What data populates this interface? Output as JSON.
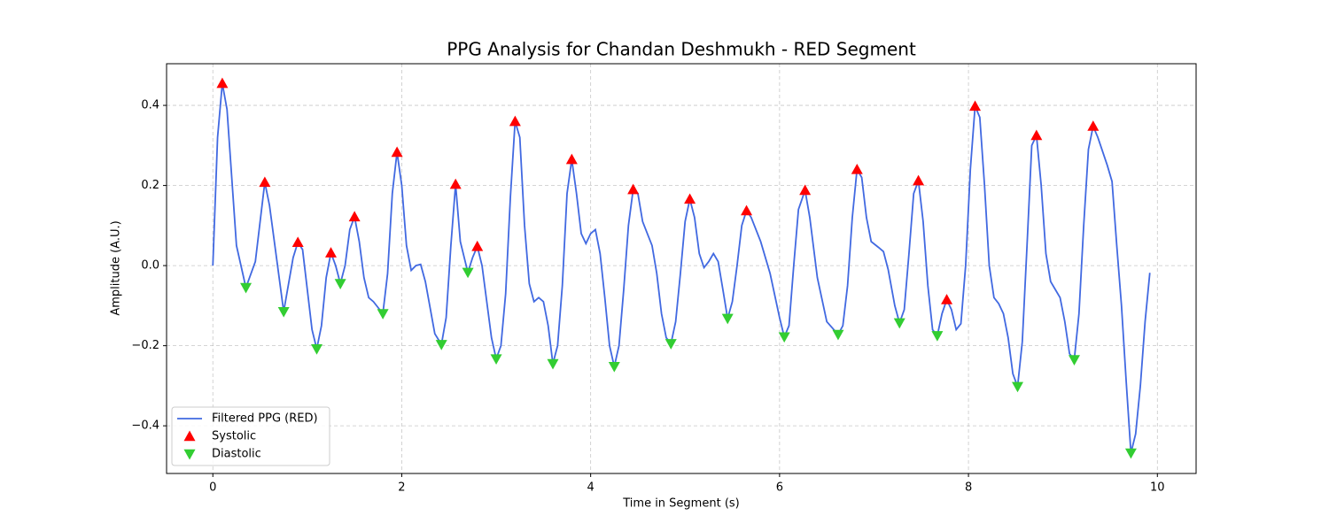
{
  "chart_data": {
    "type": "line",
    "title": "PPG Analysis for Chandan Deshmukh - RED Segment",
    "x_label": "Time in Segment (s)",
    "y_label": "Amplitude (A.U.)",
    "xlim": [
      -0.49,
      10.41
    ],
    "ylim": [
      -0.519,
      0.504
    ],
    "xticks": [
      0,
      2,
      4,
      6,
      8,
      10
    ],
    "yticks": [
      {
        "value": -0.4,
        "label": "−0.4"
      },
      {
        "value": -0.2,
        "label": "−0.2"
      },
      {
        "value": 0,
        "label": "0.0"
      },
      0.2,
      0.4
    ],
    "grid": true,
    "legend": "lower left",
    "series": [
      {
        "name": "Filtered PPG (RED)",
        "color": "#4169e1",
        "style": "line",
        "x": [
          0,
          0.05,
          0.1,
          0.15,
          0.25,
          0.35,
          0.45,
          0.55,
          0.6,
          0.75,
          0.85,
          0.9,
          0.95,
          1.05,
          1.1,
          1.15,
          1.2,
          1.25,
          1.3,
          1.35,
          1.4,
          1.45,
          1.5,
          1.55,
          1.6,
          1.65,
          1.7,
          1.8,
          1.85,
          1.9,
          1.95,
          2.0,
          2.05,
          2.1,
          2.15,
          2.2,
          2.25,
          2.35,
          2.42,
          2.47,
          2.52,
          2.57,
          2.62,
          2.7,
          2.75,
          2.8,
          2.85,
          2.95,
          3.0,
          3.05,
          3.1,
          3.15,
          3.2,
          3.25,
          3.3,
          3.35,
          3.4,
          3.45,
          3.5,
          3.55,
          3.6,
          3.65,
          3.7,
          3.75,
          3.8,
          3.85,
          3.9,
          3.95,
          4.0,
          4.05,
          4.1,
          4.15,
          4.2,
          4.25,
          4.3,
          4.35,
          4.4,
          4.45,
          4.5,
          4.55,
          4.6,
          4.65,
          4.7,
          4.75,
          4.8,
          4.85,
          4.9,
          4.95,
          5.0,
          5.05,
          5.1,
          5.15,
          5.2,
          5.25,
          5.3,
          5.35,
          5.4,
          5.45,
          5.5,
          5.55,
          5.6,
          5.65,
          5.7,
          5.8,
          5.9,
          6.0,
          6.05,
          6.1,
          6.15,
          6.2,
          6.27,
          6.32,
          6.4,
          6.5,
          6.62,
          6.67,
          6.72,
          6.77,
          6.82,
          6.87,
          6.92,
          6.97,
          7.05,
          7.1,
          7.15,
          7.22,
          7.27,
          7.32,
          7.37,
          7.42,
          7.47,
          7.52,
          7.57,
          7.62,
          7.67,
          7.72,
          7.77,
          7.82,
          7.87,
          7.92,
          7.97,
          8.02,
          8.07,
          8.12,
          8.17,
          8.22,
          8.27,
          8.32,
          8.37,
          8.42,
          8.47,
          8.52,
          8.57,
          8.62,
          8.67,
          8.72,
          8.77,
          8.82,
          8.87,
          8.92,
          8.97,
          9.02,
          9.07,
          9.12,
          9.17,
          9.22,
          9.27,
          9.32,
          9.37,
          9.47,
          9.52,
          9.57,
          9.62,
          9.67,
          9.72,
          9.77,
          9.82,
          9.87,
          9.92
        ],
        "values": [
          0,
          0.32,
          0.455,
          0.39,
          0.05,
          -0.055,
          0.01,
          0.208,
          0.15,
          -0.115,
          0.02,
          0.058,
          0.04,
          -0.16,
          -0.208,
          -0.15,
          -0.03,
          0.032,
          0,
          -0.045,
          0,
          0.09,
          0.122,
          0.06,
          -0.03,
          -0.08,
          -0.09,
          -0.12,
          -0.02,
          0.18,
          0.283,
          0.2,
          0.05,
          -0.012,
          0,
          0.003,
          -0.04,
          -0.17,
          -0.197,
          -0.13,
          0.05,
          0.203,
          0.06,
          -0.017,
          0.02,
          0.048,
          0,
          -0.18,
          -0.233,
          -0.2,
          -0.07,
          0.17,
          0.36,
          0.32,
          0.1,
          -0.045,
          -0.09,
          -0.08,
          -0.09,
          -0.15,
          -0.245,
          -0.2,
          -0.05,
          0.18,
          0.265,
          0.18,
          0.08,
          0.055,
          0.08,
          0.09,
          0.03,
          -0.08,
          -0.2,
          -0.252,
          -0.2,
          -0.06,
          0.1,
          0.19,
          0.18,
          0.11,
          0.08,
          0.05,
          -0.02,
          -0.12,
          -0.18,
          -0.195,
          -0.14,
          -0.02,
          0.11,
          0.166,
          0.12,
          0.03,
          -0.005,
          0.01,
          0.03,
          0.01,
          -0.06,
          -0.132,
          -0.09,
          0,
          0.1,
          0.137,
          0.12,
          0.06,
          -0.02,
          -0.13,
          -0.178,
          -0.15,
          0,
          0.14,
          0.188,
          0.12,
          -0.03,
          -0.14,
          -0.172,
          -0.15,
          -0.05,
          0.12,
          0.24,
          0.22,
          0.12,
          0.06,
          0.045,
          0.035,
          -0.01,
          -0.1,
          -0.143,
          -0.11,
          0.03,
          0.18,
          0.212,
          0.11,
          -0.05,
          -0.16,
          -0.175,
          -0.12,
          -0.085,
          -0.11,
          -0.16,
          -0.145,
          0,
          0.24,
          0.398,
          0.37,
          0.2,
          0,
          -0.08,
          -0.095,
          -0.12,
          -0.18,
          -0.27,
          -0.302,
          -0.19,
          0.05,
          0.3,
          0.325,
          0.2,
          0.03,
          -0.04,
          -0.06,
          -0.08,
          -0.14,
          -0.22,
          -0.235,
          -0.12,
          0.1,
          0.29,
          0.348,
          0.32,
          0.25,
          0.21,
          0.05,
          -0.1,
          -0.29,
          -0.468,
          -0.42,
          -0.3,
          -0.14,
          -0.018
        ]
      },
      {
        "name": "Systolic",
        "color": "#ff0000",
        "style": "triangle-up",
        "x": [
          0.1,
          0.55,
          0.9,
          1.25,
          1.5,
          1.95,
          2.57,
          2.8,
          3.2,
          3.8,
          4.45,
          5.05,
          5.65,
          6.27,
          6.82,
          7.47,
          7.77,
          8.07,
          8.72,
          9.32
        ],
        "values": [
          0.455,
          0.208,
          0.058,
          0.032,
          0.122,
          0.283,
          0.203,
          0.048,
          0.36,
          0.265,
          0.19,
          0.166,
          0.137,
          0.188,
          0.24,
          0.212,
          -0.085,
          0.398,
          0.325,
          0.348
        ]
      },
      {
        "name": "Diastolic",
        "color": "#32cd32",
        "style": "triangle-down",
        "x": [
          0.35,
          0.75,
          1.1,
          1.35,
          1.8,
          2.42,
          2.7,
          3.0,
          3.6,
          4.25,
          4.85,
          5.45,
          6.05,
          6.62,
          7.27,
          7.67,
          8.52,
          9.12,
          9.72
        ],
        "values": [
          -0.055,
          -0.115,
          -0.208,
          -0.045,
          -0.12,
          -0.197,
          -0.017,
          -0.233,
          -0.245,
          -0.252,
          -0.195,
          -0.132,
          -0.178,
          -0.172,
          -0.143,
          -0.175,
          -0.302,
          -0.235,
          -0.468
        ]
      }
    ]
  }
}
